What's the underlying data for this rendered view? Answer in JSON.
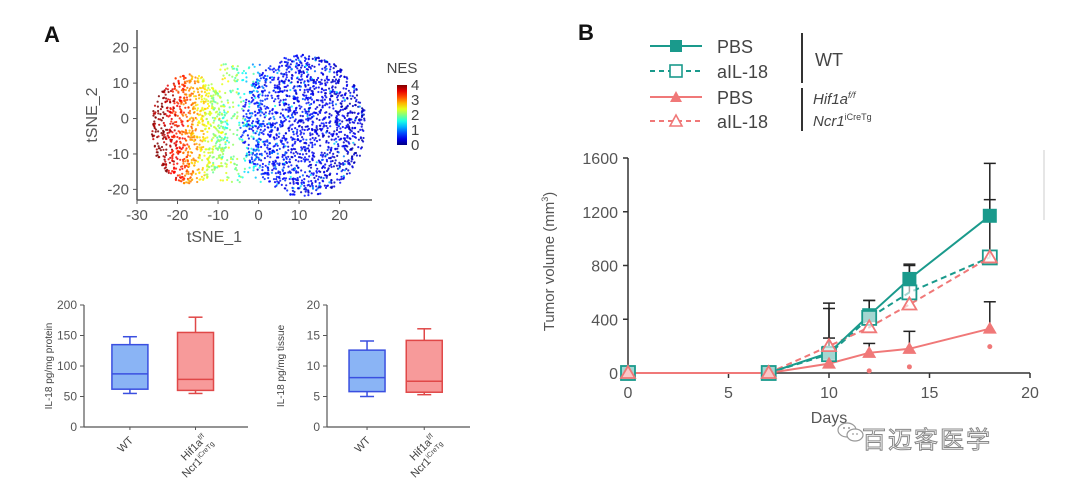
{
  "panels": {
    "A": {
      "label": "A"
    },
    "B": {
      "label": "B"
    }
  },
  "watermark": {
    "text": "百迈客医学",
    "icon": "wechat-icon"
  },
  "colors": {
    "teal": "#1a9a8c",
    "salmon": "#f07878",
    "box_blue_fill": "#8ab4f5",
    "box_blue_stroke": "#3a4fe0",
    "box_red_fill": "#f79a9a",
    "box_red_stroke": "#e04848",
    "axis": "#555555",
    "error": "#222222"
  },
  "chart_data": [
    {
      "id": "tsne",
      "type": "scatter",
      "title": "",
      "xlabel": "tSNE_1",
      "ylabel": "tSNE_2",
      "xlim": [
        -30,
        28
      ],
      "ylim": [
        -23,
        25
      ],
      "xticks": [
        "-30",
        "-20",
        "-10",
        "0",
        "10",
        "20"
      ],
      "yticks": [
        "-20",
        "-10",
        "0",
        "10",
        "20"
      ],
      "colorbar": {
        "title": "NES",
        "min": 0,
        "max": 4,
        "ticks": [
          "4",
          "3",
          "2",
          "1",
          "0"
        ],
        "colormap": "jet",
        "placement": "right"
      },
      "clusters": [
        {
          "name": "left cluster (high NES)",
          "x_range": [
            -27,
            -8
          ],
          "y_range": [
            -20,
            13
          ],
          "nes_range": [
            2,
            4
          ]
        },
        {
          "name": "middle transition",
          "x_range": [
            -12,
            0
          ],
          "y_range": [
            -20,
            17
          ],
          "nes_range": [
            0.8,
            2.5
          ]
        },
        {
          "name": "right cluster (low NES)",
          "x_range": [
            -2,
            27
          ],
          "y_range": [
            -23,
            20
          ],
          "nes_range": [
            0,
            1
          ]
        }
      ]
    },
    {
      "id": "box-protein",
      "type": "box",
      "ylabel": "IL-18 pg/mg protein",
      "ylim": [
        0,
        200
      ],
      "yticks": [
        "0",
        "50",
        "100",
        "150",
        "200"
      ],
      "categories": [
        "WT",
        "Hif1a f/f Ncr1 iCreTg"
      ],
      "category_labels": [
        {
          "main": "WT",
          "sup": "",
          "main2": "",
          "sup2": ""
        },
        {
          "main": "Hif1a",
          "sup": "f/f",
          "main2": "Ncr1",
          "sup2": "iCreTg"
        }
      ],
      "series": [
        {
          "name": "WT",
          "min": 55,
          "q1": 62,
          "median": 87,
          "q3": 135,
          "max": 148
        },
        {
          "name": "Hif1a f/f Ncr1 iCreTg",
          "min": 55,
          "q1": 60,
          "median": 78,
          "q3": 155,
          "max": 180
        }
      ]
    },
    {
      "id": "box-tissue",
      "type": "box",
      "ylabel": "IL-18 pg/mg tissue",
      "ylim": [
        0,
        20
      ],
      "yticks": [
        "0",
        "5",
        "10",
        "15",
        "20"
      ],
      "categories": [
        "WT",
        "Hif1a f/f Ncr1 iCreTg"
      ],
      "category_labels": [
        {
          "main": "WT",
          "sup": "",
          "main2": "",
          "sup2": ""
        },
        {
          "main": "Hif1a",
          "sup": "f/f",
          "main2": "Ncr1",
          "sup2": "iCreTg"
        }
      ],
      "series": [
        {
          "name": "WT",
          "min": 5.0,
          "q1": 5.8,
          "median": 8.1,
          "q3": 12.6,
          "max": 14.1
        },
        {
          "name": "Hif1a f/f Ncr1 iCreTg",
          "min": 5.3,
          "q1": 5.7,
          "median": 7.5,
          "q3": 14.2,
          "max": 16.1
        }
      ]
    },
    {
      "id": "tumor-growth",
      "type": "line",
      "xlabel": "Days",
      "ylabel": "Tumor volume (mm³)",
      "ylabel_main": "Tumor volume (mm",
      "ylabel_sup": "3",
      "ylabel_end": ")",
      "xlim": [
        0,
        20
      ],
      "ylim": [
        0,
        1600
      ],
      "xticks": [
        "0",
        "5",
        "10",
        "15",
        "20"
      ],
      "yticks": [
        "0",
        "400",
        "800",
        "1200",
        "1600"
      ],
      "x": [
        0,
        7,
        10,
        12,
        14,
        18
      ],
      "legend": {
        "placement": "top",
        "groups": [
          {
            "name": "WT",
            "italic": false,
            "line2": "",
            "sup": "",
            "sup2": ""
          },
          {
            "name": "Hif1a",
            "italic": true,
            "sup": "f/f",
            "line2": "Ncr1",
            "sup2": "iCreTg"
          }
        ]
      },
      "series": [
        {
          "name": "PBS",
          "group": "WT",
          "color": "#1a9a8c",
          "marker": "filled-square",
          "dash": false,
          "values": [
            0,
            0,
            150,
            430,
            700,
            1170
          ],
          "error": [
            0,
            0,
            330,
            110,
            100,
            390
          ]
        },
        {
          "name": "aIL-18",
          "group": "WT",
          "color": "#1a9a8c",
          "marker": "open-square",
          "dash": true,
          "values": [
            0,
            0,
            140,
            410,
            600,
            860
          ],
          "error": [
            0,
            0,
            380,
            130,
            210,
            430
          ]
        },
        {
          "name": "PBS",
          "group": "Hif1a f/f Ncr1 iCreTg",
          "color": "#f07878",
          "marker": "filled-triangle",
          "dash": false,
          "values": [
            0,
            0,
            70,
            150,
            180,
            330
          ],
          "error": [
            0,
            0,
            0,
            70,
            130,
            200
          ]
        },
        {
          "name": "aIL-18",
          "group": "Hif1a f/f Ncr1 iCreTg",
          "color": "#f07878",
          "marker": "open-triangle",
          "dash": true,
          "values": [
            0,
            0,
            200,
            340,
            510,
            860
          ],
          "error": [
            0,
            0,
            60,
            0,
            0,
            0
          ]
        }
      ],
      "significance": [
        {
          "x": 12,
          "symbol": "*"
        },
        {
          "x": 14,
          "symbol": "*"
        },
        {
          "x": 18,
          "symbol": "*"
        }
      ]
    }
  ]
}
